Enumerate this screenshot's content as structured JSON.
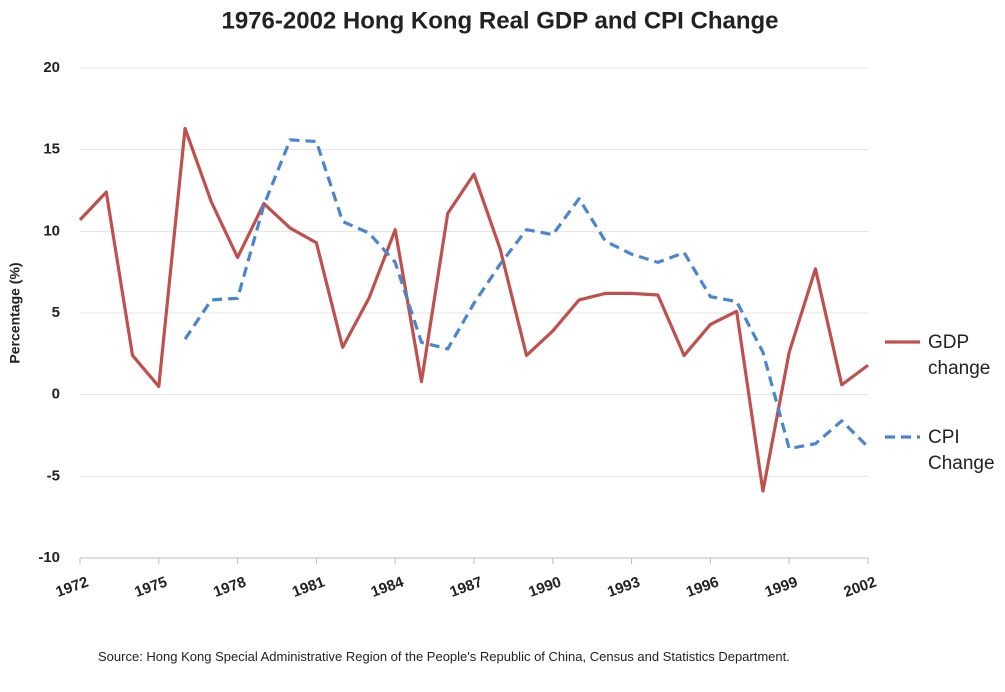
{
  "chart_data": {
    "type": "line",
    "title": "1976-2002 Hong Kong Real GDP and CPI Change",
    "ylabel": "Percentage (%)",
    "source": "Source: Hong Kong Special Administrative Region of the People's Republic of China, Census and Statistics Department.",
    "x": [
      1972,
      1973,
      1974,
      1975,
      1976,
      1977,
      1978,
      1979,
      1980,
      1981,
      1982,
      1983,
      1984,
      1985,
      1986,
      1987,
      1988,
      1989,
      1990,
      1991,
      1992,
      1993,
      1994,
      1995,
      1996,
      1997,
      1998,
      1999,
      2000,
      2001,
      2002
    ],
    "series": [
      {
        "name": "GDP change",
        "color": "#c0504d",
        "dash": false,
        "values": [
          10.7,
          12.4,
          2.4,
          0.5,
          16.3,
          11.8,
          8.4,
          11.7,
          10.2,
          9.3,
          2.9,
          5.9,
          10.1,
          0.8,
          11.1,
          13.5,
          8.9,
          2.4,
          3.9,
          5.8,
          6.2,
          6.2,
          6.1,
          2.4,
          4.3,
          5.1,
          -5.9,
          2.6,
          7.7,
          0.6,
          1.8
        ]
      },
      {
        "name": "CPI Change",
        "color": "#4a86d0",
        "dash": true,
        "values": [
          null,
          null,
          null,
          null,
          3.4,
          5.8,
          5.9,
          11.6,
          15.6,
          15.5,
          10.6,
          9.9,
          8.1,
          3.2,
          2.8,
          5.6,
          8.0,
          10.1,
          9.8,
          12.0,
          9.4,
          8.6,
          8.1,
          8.7,
          6.0,
          5.7,
          2.6,
          -3.3,
          -3.0,
          -1.6,
          -3.2
        ]
      }
    ],
    "xlim": [
      1972,
      2002
    ],
    "xticks": [
      1972,
      1975,
      1978,
      1981,
      1984,
      1987,
      1990,
      1993,
      1996,
      1999,
      2002
    ],
    "ylim": [
      -10,
      20
    ],
    "yticks": [
      -10,
      -5,
      0,
      5,
      10,
      15,
      20
    ],
    "grid": true,
    "legend": "right"
  }
}
